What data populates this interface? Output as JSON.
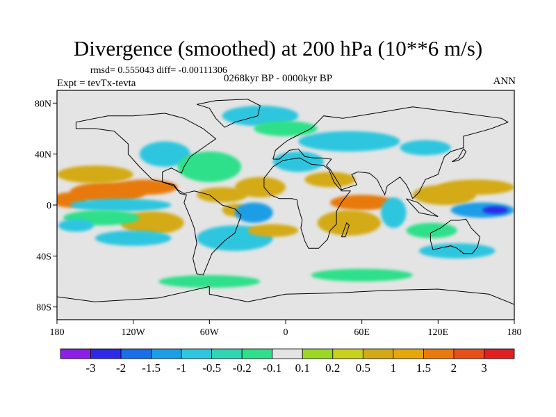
{
  "header": {
    "title": "Divergence (smoothed) at 200 hPa (10**6 m/s)",
    "stats": "rmsd= 0.555043 diff= -0.00111306",
    "experiment": "Expt = tevTx-tevta",
    "period": "0268kyr BP - 0000kyr BP",
    "season": "ANN"
  },
  "map": {
    "projection": "cylindrical-equidistant",
    "lon_range": [
      -180,
      180
    ],
    "lat_range": [
      -90,
      90
    ],
    "x_ticks": [
      {
        "lon": -180,
        "label": "180"
      },
      {
        "lon": -120,
        "label": "120W"
      },
      {
        "lon": -60,
        "label": "60W"
      },
      {
        "lon": 0,
        "label": "0"
      },
      {
        "lon": 60,
        "label": "60E"
      },
      {
        "lon": 120,
        "label": "120E"
      },
      {
        "lon": 180,
        "label": "180"
      }
    ],
    "y_ticks": [
      {
        "lat": 80,
        "label": "80N"
      },
      {
        "lat": 40,
        "label": "40N"
      },
      {
        "lat": 0,
        "label": "0"
      },
      {
        "lat": -40,
        "label": "40S"
      },
      {
        "lat": -80,
        "label": "80S"
      }
    ],
    "background_color": "#e4e4e4",
    "regions": [
      {
        "lon": -170,
        "lat": 4,
        "rx": 14,
        "ry": 6,
        "level": 2
      },
      {
        "lon": -140,
        "lat": 10,
        "rx": 30,
        "ry": 8,
        "level": 2
      },
      {
        "lon": -110,
        "lat": 14,
        "rx": 25,
        "ry": 6,
        "level": 2
      },
      {
        "lon": -150,
        "lat": 24,
        "rx": 30,
        "ry": 7,
        "level": 1
      },
      {
        "lon": -130,
        "lat": 0,
        "rx": 40,
        "ry": 5,
        "level": -1
      },
      {
        "lon": -105,
        "lat": -14,
        "rx": 25,
        "ry": 9,
        "level": 1
      },
      {
        "lon": -145,
        "lat": -10,
        "rx": 30,
        "ry": 6,
        "level": 0
      },
      {
        "lon": -165,
        "lat": -16,
        "rx": 14,
        "ry": 5,
        "level": -1
      },
      {
        "lon": -120,
        "lat": -26,
        "rx": 30,
        "ry": 6,
        "level": -1
      },
      {
        "lon": -95,
        "lat": 40,
        "rx": 20,
        "ry": 10,
        "level": -1
      },
      {
        "lon": -60,
        "lat": 30,
        "rx": 25,
        "ry": 12,
        "level": 0
      },
      {
        "lon": -50,
        "lat": 8,
        "rx": 20,
        "ry": 6,
        "level": 1
      },
      {
        "lon": -20,
        "lat": 14,
        "rx": 20,
        "ry": 8,
        "level": 1
      },
      {
        "lon": -40,
        "lat": -4,
        "rx": 10,
        "ry": 5,
        "level": 1
      },
      {
        "lon": -25,
        "lat": -6,
        "rx": 15,
        "ry": 8,
        "level": -2
      },
      {
        "lon": -40,
        "lat": -26,
        "rx": 30,
        "ry": 10,
        "level": -1
      },
      {
        "lon": -10,
        "lat": -20,
        "rx": 20,
        "ry": 5,
        "level": 1
      },
      {
        "lon": 10,
        "lat": 34,
        "rx": 20,
        "ry": 8,
        "level": -1
      },
      {
        "lon": 35,
        "lat": 20,
        "rx": 20,
        "ry": 6,
        "level": 1
      },
      {
        "lon": 60,
        "lat": 2,
        "rx": 25,
        "ry": 6,
        "level": 2
      },
      {
        "lon": 50,
        "lat": -14,
        "rx": 25,
        "ry": 10,
        "level": 1
      },
      {
        "lon": 85,
        "lat": -6,
        "rx": 10,
        "ry": 12,
        "level": -1
      },
      {
        "lon": 125,
        "lat": 8,
        "rx": 25,
        "ry": 8,
        "level": 1
      },
      {
        "lon": 150,
        "lat": 14,
        "rx": 30,
        "ry": 6,
        "level": 1
      },
      {
        "lon": 155,
        "lat": -4,
        "rx": 25,
        "ry": 6,
        "level": -2
      },
      {
        "lon": 165,
        "lat": -4,
        "rx": 10,
        "ry": 3,
        "level": -3
      },
      {
        "lon": 115,
        "lat": -20,
        "rx": 20,
        "ry": 6,
        "level": 0
      },
      {
        "lon": 135,
        "lat": -36,
        "rx": 30,
        "ry": 6,
        "level": -1
      },
      {
        "lon": 50,
        "lat": 50,
        "rx": 40,
        "ry": 8,
        "level": -1
      },
      {
        "lon": 110,
        "lat": 45,
        "rx": 20,
        "ry": 6,
        "level": -1
      },
      {
        "lon": -20,
        "lat": 70,
        "rx": 30,
        "ry": 8,
        "level": -1
      },
      {
        "lon": 0,
        "lat": 60,
        "rx": 25,
        "ry": 6,
        "level": 0
      },
      {
        "lon": -60,
        "lat": -60,
        "rx": 40,
        "ry": 5,
        "level": 0
      },
      {
        "lon": 60,
        "lat": -55,
        "rx": 40,
        "ry": 5,
        "level": 0
      }
    ]
  },
  "colorbar": {
    "colors": [
      "#8b1fe6",
      "#2c2ae8",
      "#1a6ee8",
      "#1a9ee6",
      "#2ec6df",
      "#2fd7b4",
      "#2ee08a",
      "#e4e4e4",
      "#9ad824",
      "#c8d21c",
      "#d4aa14",
      "#e6a70c",
      "#e87a0e",
      "#e5501a",
      "#e02020"
    ],
    "labels": [
      "-3",
      "-2",
      "-1.5",
      "-1",
      "-0.5",
      "-0.2",
      "-0.1",
      "0.1",
      "0.2",
      "0.5",
      "1",
      "1.5",
      "2",
      "3"
    ]
  },
  "colors": {
    "coastline": "#000000",
    "frame": "#000000"
  }
}
